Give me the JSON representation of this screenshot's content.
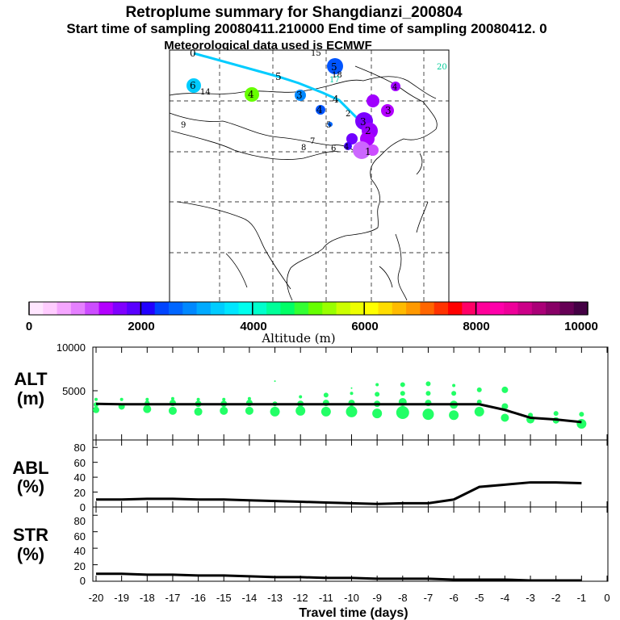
{
  "header": {
    "title": "Retroplume summary for Shangdianzi_200804",
    "line2": "Start time of sampling 20080411.210000     End time of sampling 20080412.     0",
    "line3": "Meteorological data used is ECMWF"
  },
  "colorbar": {
    "tick_labels": [
      "0",
      "2000",
      "4000",
      "6000",
      "8000",
      "10000"
    ],
    "label": "Altitude (m)",
    "colors": [
      "#ffe6ff",
      "#ffccff",
      "#f5a6ff",
      "#e580ff",
      "#cc4dff",
      "#b300ff",
      "#8000ff",
      "#5900ff",
      "#2200ff",
      "#0044ff",
      "#0066ff",
      "#0088ff",
      "#00aaff",
      "#00ccff",
      "#00e6ff",
      "#00ffee",
      "#00ffcc",
      "#00ff99",
      "#00ff66",
      "#33ff33",
      "#66ff00",
      "#99ff00",
      "#ccff00",
      "#eeff00",
      "#ffff00",
      "#ffdd00",
      "#ffbb00",
      "#ff9900",
      "#ff6600",
      "#ff3300",
      "#ff0000",
      "#ff0066",
      "#ff0099",
      "#ff00aa",
      "#ee0099",
      "#cc0088",
      "#aa0077",
      "#880066",
      "#660055",
      "#440044"
    ]
  },
  "map_markers": {
    "labels": [
      "0",
      "5",
      "4",
      "5",
      "4",
      "3",
      "2",
      "1",
      "6",
      "14",
      "4",
      "15",
      "20",
      "18",
      "17",
      "3",
      "4",
      "8",
      "9",
      "7",
      "6",
      "5",
      "4",
      "3",
      "2"
    ]
  },
  "panels": [
    {
      "label": "ALT",
      "unit": "(m)"
    },
    {
      "label": "ABL",
      "unit": "(%)"
    },
    {
      "label": "STR",
      "unit": "(%)"
    }
  ],
  "chart_data": [
    {
      "type": "line",
      "title": "ALT",
      "ylabel": "(m)",
      "x": [
        -20,
        -19,
        -18,
        -17,
        -16,
        -15,
        -14,
        -13,
        -12,
        -11,
        -10,
        -9,
        -8,
        -7,
        -6,
        -5,
        -4,
        -3,
        -2,
        -1
      ],
      "values": [
        3500,
        3450,
        3450,
        3450,
        3450,
        3450,
        3450,
        3450,
        3450,
        3450,
        3450,
        3450,
        3450,
        3450,
        3450,
        3450,
        2800,
        1900,
        1700,
        1400
      ],
      "ylim": [
        0,
        10000
      ],
      "yticks": [
        "10000",
        "5000"
      ]
    },
    {
      "type": "line",
      "title": "ABL",
      "ylabel": "(%)",
      "x": [
        -20,
        -19,
        -18,
        -17,
        -16,
        -15,
        -14,
        -13,
        -12,
        -11,
        -10,
        -9,
        -8,
        -7,
        -6,
        -5,
        -4,
        -3,
        -2,
        -1
      ],
      "values": [
        10,
        10,
        11,
        11,
        10,
        10,
        9,
        8,
        7,
        6,
        5,
        4,
        5,
        5,
        10,
        27,
        30,
        33,
        33,
        32
      ],
      "ylim": [
        0,
        90
      ],
      "yticks": [
        "80",
        "60",
        "40",
        "20",
        "0"
      ]
    },
    {
      "type": "line",
      "title": "STR",
      "ylabel": "(%)",
      "x": [
        -20,
        -19,
        -18,
        -17,
        -16,
        -15,
        -14,
        -13,
        -12,
        -11,
        -10,
        -9,
        -8,
        -7,
        -6,
        -5,
        -4,
        -3,
        -2,
        -1
      ],
      "values": [
        9,
        9,
        8,
        8,
        7,
        7,
        6,
        5,
        5,
        4,
        4,
        3,
        3,
        3,
        2,
        2,
        2,
        1,
        1,
        1
      ],
      "ylim": [
        0,
        90
      ],
      "yticks": [
        "80",
        "60",
        "40",
        "20",
        "0"
      ]
    }
  ],
  "xaxis": {
    "ticks": [
      "-20",
      "-19",
      "-18",
      "-17",
      "-16",
      "-15",
      "-14",
      "-13",
      "-12",
      "-11",
      "-10",
      "-9",
      "-8",
      "-7",
      "-6",
      "-5",
      "-4",
      "-3",
      "-2",
      "-1",
      "0"
    ],
    "label": "Travel time (days)"
  }
}
